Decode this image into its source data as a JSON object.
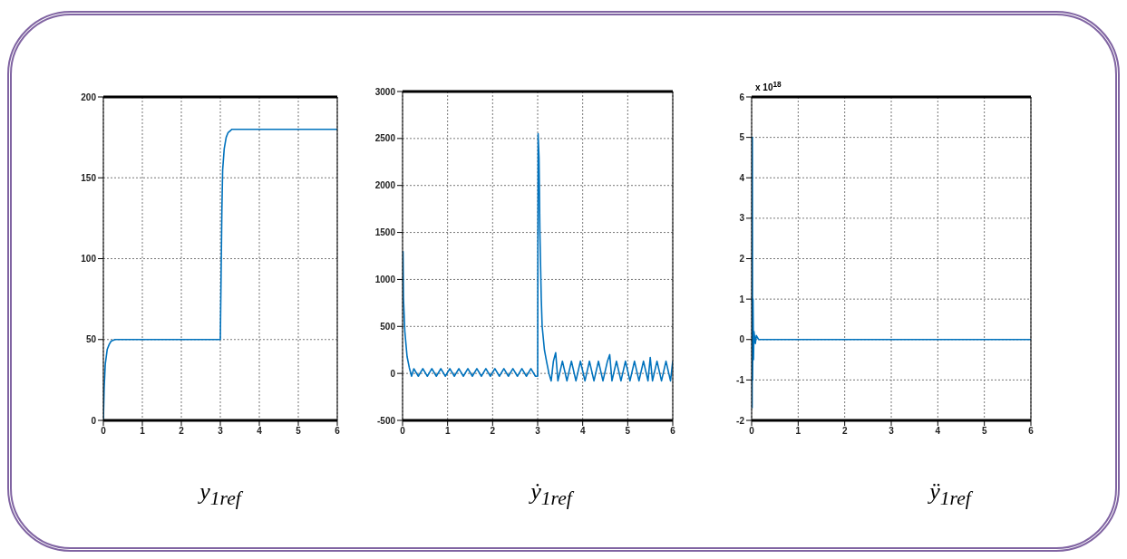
{
  "chart_data": [
    {
      "type": "line",
      "xlabel": "y$_{1ref}$",
      "xlim": [
        0,
        6
      ],
      "xticks": [
        0,
        1,
        2,
        3,
        4,
        5,
        6
      ],
      "ylim": [
        0,
        200
      ],
      "yticks": [
        0,
        50,
        100,
        150,
        200
      ],
      "grid": true,
      "marker": "none",
      "line_style": "solid",
      "series": [
        {
          "color": "#0072bd",
          "x": [
            0,
            0.02,
            0.05,
            0.1,
            0.15,
            0.2,
            0.3,
            3,
            3.02,
            3.04,
            3.06,
            3.1,
            3.15,
            3.2,
            3.3,
            6
          ],
          "values": [
            0,
            20,
            35,
            44,
            47,
            49,
            50,
            50,
            90,
            130,
            155,
            168,
            175,
            178,
            180,
            180
          ]
        }
      ]
    },
    {
      "type": "line",
      "xlabel": "ẏ$_{1ref}$",
      "xlim": [
        0,
        6
      ],
      "xticks": [
        0,
        1,
        2,
        3,
        4,
        5,
        6
      ],
      "ylim": [
        -500,
        3000
      ],
      "yticks": [
        -500,
        0,
        500,
        1000,
        1500,
        2000,
        2500,
        3000
      ],
      "grid": true,
      "marker": "none",
      "line_style": "solid",
      "series": [
        {
          "color": "#0072bd",
          "x": [
            0.01,
            0.02,
            0.05,
            0.1,
            0.15,
            0.2,
            0.25,
            0.35,
            0.45,
            0.55,
            0.65,
            0.75,
            0.85,
            0.95,
            1.05,
            1.15,
            1.25,
            1.35,
            1.45,
            1.55,
            1.65,
            1.75,
            1.85,
            1.95,
            2.05,
            2.15,
            2.25,
            2.35,
            2.45,
            2.55,
            2.65,
            2.75,
            2.85,
            2.95,
            3.0,
            3.01,
            3.03,
            3.05,
            3.08,
            3.1,
            3.15,
            3.2,
            3.25,
            3.3,
            3.35,
            3.4,
            3.45,
            3.55,
            3.65,
            3.75,
            3.85,
            3.95,
            4.05,
            4.15,
            4.25,
            4.35,
            4.45,
            4.55,
            4.6,
            4.65,
            4.75,
            4.85,
            4.95,
            5.05,
            5.15,
            5.25,
            5.35,
            5.45,
            5.5,
            5.55,
            5.65,
            5.75,
            5.85,
            5.95,
            6
          ],
          "values": [
            1300,
            800,
            450,
            180,
            60,
            -30,
            50,
            -30,
            50,
            -30,
            50,
            -30,
            50,
            -30,
            50,
            -30,
            50,
            -30,
            50,
            -30,
            50,
            -30,
            50,
            -30,
            50,
            -30,
            50,
            -30,
            50,
            -30,
            50,
            -30,
            50,
            -30,
            -30,
            2550,
            2300,
            1500,
            800,
            500,
            250,
            120,
            0,
            -80,
            130,
            220,
            -80,
            130,
            -80,
            130,
            -80,
            130,
            -80,
            130,
            -80,
            130,
            -80,
            130,
            200,
            -80,
            130,
            -80,
            130,
            -80,
            130,
            -80,
            130,
            -80,
            170,
            -80,
            130,
            -80,
            130,
            -80,
            130
          ]
        }
      ]
    },
    {
      "type": "line",
      "xlabel": "ÿ$_{1ref}$",
      "annotations": [
        "x 10$^{18}$"
      ],
      "xlim": [
        0,
        6
      ],
      "xticks": [
        0,
        1,
        2,
        3,
        4,
        5,
        6
      ],
      "ylim": [
        -2,
        6
      ],
      "yticks": [
        -2,
        -1,
        0,
        1,
        2,
        3,
        4,
        5,
        6
      ],
      "grid": true,
      "marker": "none",
      "line_style": "solid",
      "series": [
        {
          "color": "#0072bd",
          "x": [
            0.01,
            0.015,
            0.02,
            0.03,
            0.04,
            0.05,
            0.08,
            0.1,
            0.15,
            6
          ],
          "values": [
            -1.7,
            5,
            -1,
            1,
            -0.5,
            0.2,
            -0.1,
            0.1,
            0,
            0
          ]
        }
      ]
    }
  ]
}
